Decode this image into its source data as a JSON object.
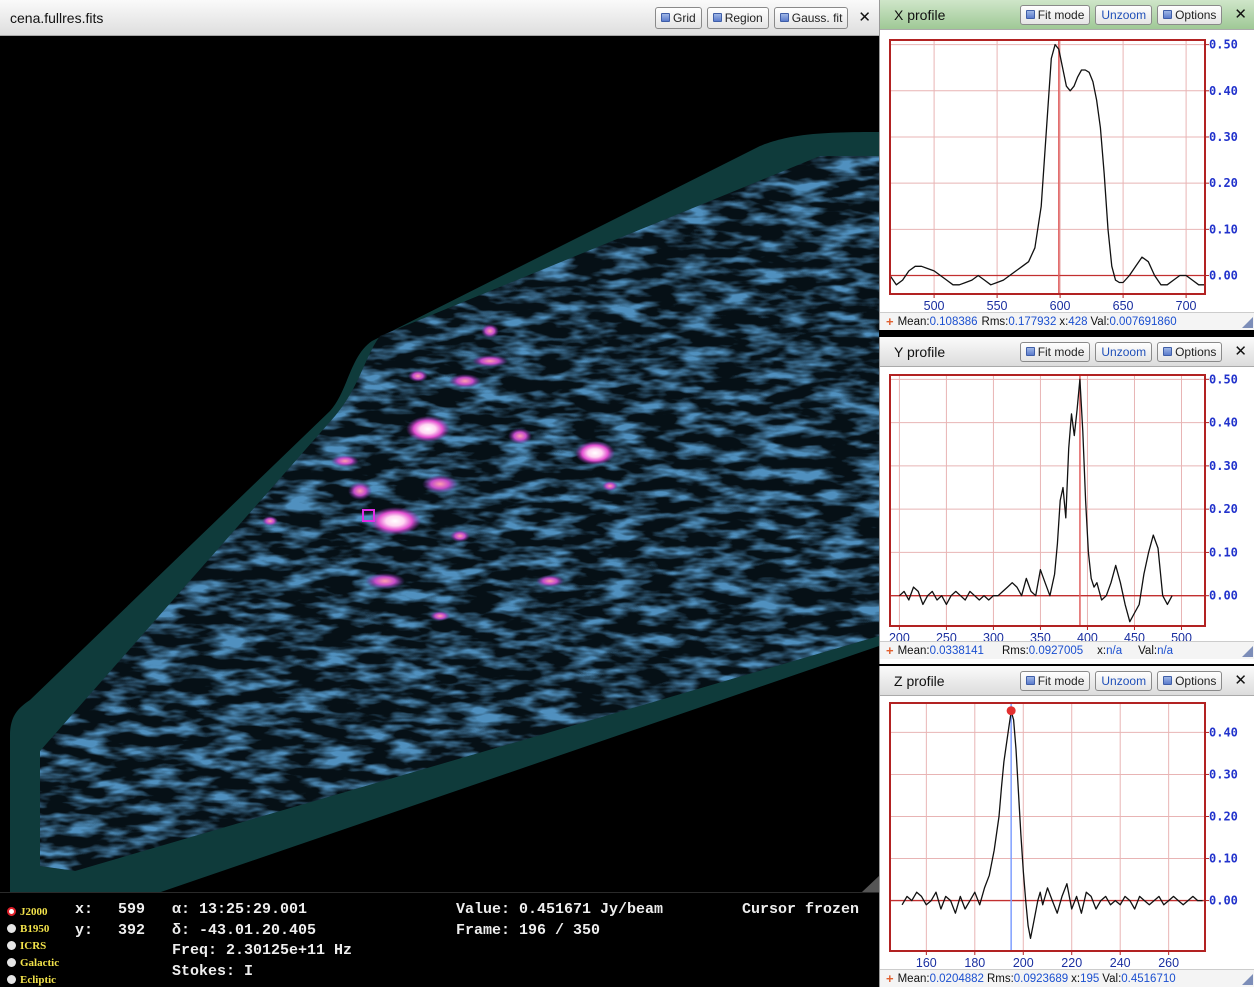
{
  "main": {
    "title": "cena.fullres.fits",
    "buttons": {
      "grid": "Grid",
      "region": "Region",
      "gauss": "Gauss. fit"
    },
    "close": "✕"
  },
  "status": {
    "frames": [
      "J2000",
      "B1950",
      "ICRS",
      "Galactic",
      "Ecliptic"
    ],
    "selected_frame": "J2000",
    "x_label": "x:",
    "x_value": "599",
    "y_label": "y:",
    "y_value": "392",
    "alpha": "α: 13:25:29.001",
    "delta": "δ: -43.01.20.405",
    "freq": "Freq: 2.30125e+11 Hz",
    "stokes": "Stokes: I",
    "value": "Value: 0.451671 Jy/beam",
    "frame": "Frame: 196 / 350",
    "cursor": "Cursor frozen"
  },
  "panel_buttons": {
    "fit": "Fit mode",
    "unzoom": "Unzoom",
    "options": "Options"
  },
  "panels": {
    "x": {
      "title": "X profile",
      "mean_label": "Mean:",
      "mean": "0.108386",
      "rms_label": "Rms:",
      "rms": "0.177932",
      "x_label": "x:",
      "x": "428",
      "val_label": "Val:",
      "val": "0.007691860"
    },
    "y": {
      "title": "Y profile",
      "mean_label": "Mean:",
      "mean": "0.0338141",
      "rms_label": "Rms:",
      "rms": "0.0927005",
      "x_label": "x:",
      "x": "n/a",
      "val_label": "Val:",
      "val": "n/a"
    },
    "z": {
      "title": "Z profile",
      "mean_label": "Mean:",
      "mean": "0.0204882",
      "rms_label": "Rms:",
      "rms": "0.0923689",
      "x_label": "x:",
      "x": "195",
      "val_label": "Val:",
      "val": "0.4516710"
    }
  },
  "colors": {
    "plot_border": "#b22222",
    "grid": "#e8b4b4",
    "zero_line": "#c23030",
    "cursor_line": "#e06060",
    "z_cursor": "#7f9fff",
    "axis_text": "#2233cc"
  },
  "chart_data": [
    {
      "type": "line",
      "name": "X profile",
      "xlim": [
        465,
        715
      ],
      "ylim": [
        -0.04,
        0.51
      ],
      "xticks": [
        500,
        550,
        600,
        650,
        700
      ],
      "yticks": [
        0.0,
        0.1,
        0.2,
        0.3,
        0.4,
        0.5
      ],
      "ytick_labels": [
        "0.00",
        "0.10",
        "0.20",
        "0.30",
        "0.40",
        "0.50"
      ],
      "cursor_x": 599,
      "x": [
        465,
        470,
        475,
        480,
        485,
        490,
        495,
        500,
        505,
        510,
        515,
        520,
        525,
        530,
        535,
        540,
        545,
        550,
        555,
        560,
        565,
        570,
        575,
        580,
        585,
        590,
        593,
        596,
        599,
        602,
        605,
        608,
        611,
        614,
        617,
        620,
        623,
        626,
        629,
        632,
        635,
        638,
        641,
        644,
        647,
        650,
        655,
        660,
        665,
        670,
        675,
        680,
        685,
        690,
        695,
        700,
        705,
        710,
        715
      ],
      "y": [
        0.0,
        -0.02,
        -0.01,
        0.01,
        0.02,
        0.02,
        0.015,
        0.01,
        0.0,
        -0.01,
        -0.02,
        -0.02,
        -0.015,
        -0.01,
        0.0,
        -0.01,
        -0.02,
        -0.015,
        -0.01,
        0.0,
        0.01,
        0.02,
        0.03,
        0.06,
        0.15,
        0.35,
        0.47,
        0.5,
        0.49,
        0.45,
        0.41,
        0.4,
        0.41,
        0.43,
        0.445,
        0.445,
        0.44,
        0.42,
        0.38,
        0.32,
        0.22,
        0.1,
        0.02,
        -0.01,
        -0.015,
        -0.015,
        0.0,
        0.02,
        0.04,
        0.03,
        0.0,
        -0.02,
        -0.02,
        -0.01,
        0.0,
        0.0,
        -0.01,
        -0.02,
        -0.02
      ]
    },
    {
      "type": "line",
      "name": "Y profile",
      "xlim": [
        190,
        525
      ],
      "ylim": [
        -0.07,
        0.51
      ],
      "xticks": [
        200,
        250,
        300,
        350,
        400,
        450,
        500
      ],
      "yticks": [
        0.0,
        0.1,
        0.2,
        0.3,
        0.4,
        0.5
      ],
      "ytick_labels": [
        "0.00",
        "0.10",
        "0.20",
        "0.30",
        "0.40",
        "0.50"
      ],
      "cursor_x": 392,
      "x": [
        200,
        205,
        210,
        215,
        220,
        225,
        230,
        235,
        240,
        245,
        250,
        255,
        260,
        265,
        270,
        275,
        280,
        285,
        290,
        295,
        300,
        305,
        310,
        315,
        320,
        325,
        330,
        335,
        340,
        345,
        350,
        355,
        360,
        365,
        368,
        371,
        374,
        377,
        380,
        383,
        386,
        389,
        392,
        395,
        398,
        401,
        404,
        407,
        410,
        415,
        420,
        425,
        430,
        435,
        440,
        445,
        450,
        455,
        460,
        465,
        470,
        475,
        480,
        485,
        490
      ],
      "y": [
        0.0,
        0.01,
        -0.01,
        0.02,
        0.01,
        -0.02,
        0.0,
        0.01,
        -0.01,
        0.0,
        -0.02,
        0.0,
        0.01,
        0.0,
        -0.01,
        0.01,
        0.0,
        -0.01,
        0.0,
        -0.01,
        0.0,
        0.0,
        0.01,
        0.02,
        0.03,
        0.02,
        0.0,
        0.04,
        0.01,
        0.0,
        0.06,
        0.03,
        0.0,
        0.05,
        0.12,
        0.22,
        0.25,
        0.18,
        0.34,
        0.42,
        0.37,
        0.43,
        0.5,
        0.38,
        0.22,
        0.1,
        0.04,
        0.02,
        0.03,
        -0.01,
        0.0,
        0.03,
        0.07,
        0.03,
        -0.02,
        -0.06,
        -0.04,
        -0.02,
        0.05,
        0.1,
        0.14,
        0.11,
        0.0,
        -0.02,
        0.0
      ]
    },
    {
      "type": "line",
      "name": "Z profile",
      "xlim": [
        145,
        275
      ],
      "ylim": [
        -0.12,
        0.47
      ],
      "xticks": [
        160,
        180,
        200,
        220,
        240,
        260
      ],
      "yticks": [
        0.0,
        0.1,
        0.2,
        0.3,
        0.4
      ],
      "ytick_labels": [
        "0.00",
        "0.10",
        "0.20",
        "0.30",
        "0.40"
      ],
      "cursor_x": 195,
      "marker": [
        195,
        0.4517
      ],
      "x": [
        150,
        152,
        154,
        156,
        158,
        160,
        162,
        164,
        166,
        168,
        170,
        172,
        174,
        176,
        178,
        180,
        182,
        184,
        186,
        188,
        190,
        191,
        192,
        193,
        194,
        195,
        196,
        197,
        198,
        199,
        200,
        201,
        202,
        203,
        204,
        205,
        206,
        207,
        208,
        210,
        212,
        214,
        216,
        218,
        220,
        222,
        224,
        226,
        228,
        230,
        232,
        234,
        236,
        238,
        240,
        242,
        244,
        246,
        248,
        250,
        252,
        254,
        256,
        258,
        260,
        262,
        264,
        266,
        268,
        270,
        272,
        274
      ],
      "y": [
        -0.01,
        0.01,
        0.0,
        0.02,
        0.01,
        -0.01,
        0.0,
        0.02,
        -0.02,
        0.01,
        0.0,
        -0.03,
        0.01,
        -0.02,
        0.0,
        0.02,
        -0.01,
        0.03,
        0.06,
        0.12,
        0.2,
        0.27,
        0.33,
        0.37,
        0.41,
        0.45,
        0.43,
        0.36,
        0.26,
        0.16,
        0.07,
        0.0,
        -0.06,
        -0.09,
        -0.06,
        -0.03,
        0.0,
        0.02,
        -0.01,
        0.03,
        0.0,
        -0.03,
        0.01,
        0.04,
        -0.02,
        0.01,
        -0.03,
        0.02,
        0.01,
        -0.02,
        0.0,
        0.01,
        -0.01,
        0.0,
        -0.01,
        0.01,
        0.0,
        -0.02,
        0.01,
        0.0,
        -0.01,
        0.0,
        0.01,
        -0.01,
        0.0,
        0.01,
        0.0,
        -0.01,
        0.0,
        0.01,
        0.0,
        0.0
      ]
    }
  ]
}
